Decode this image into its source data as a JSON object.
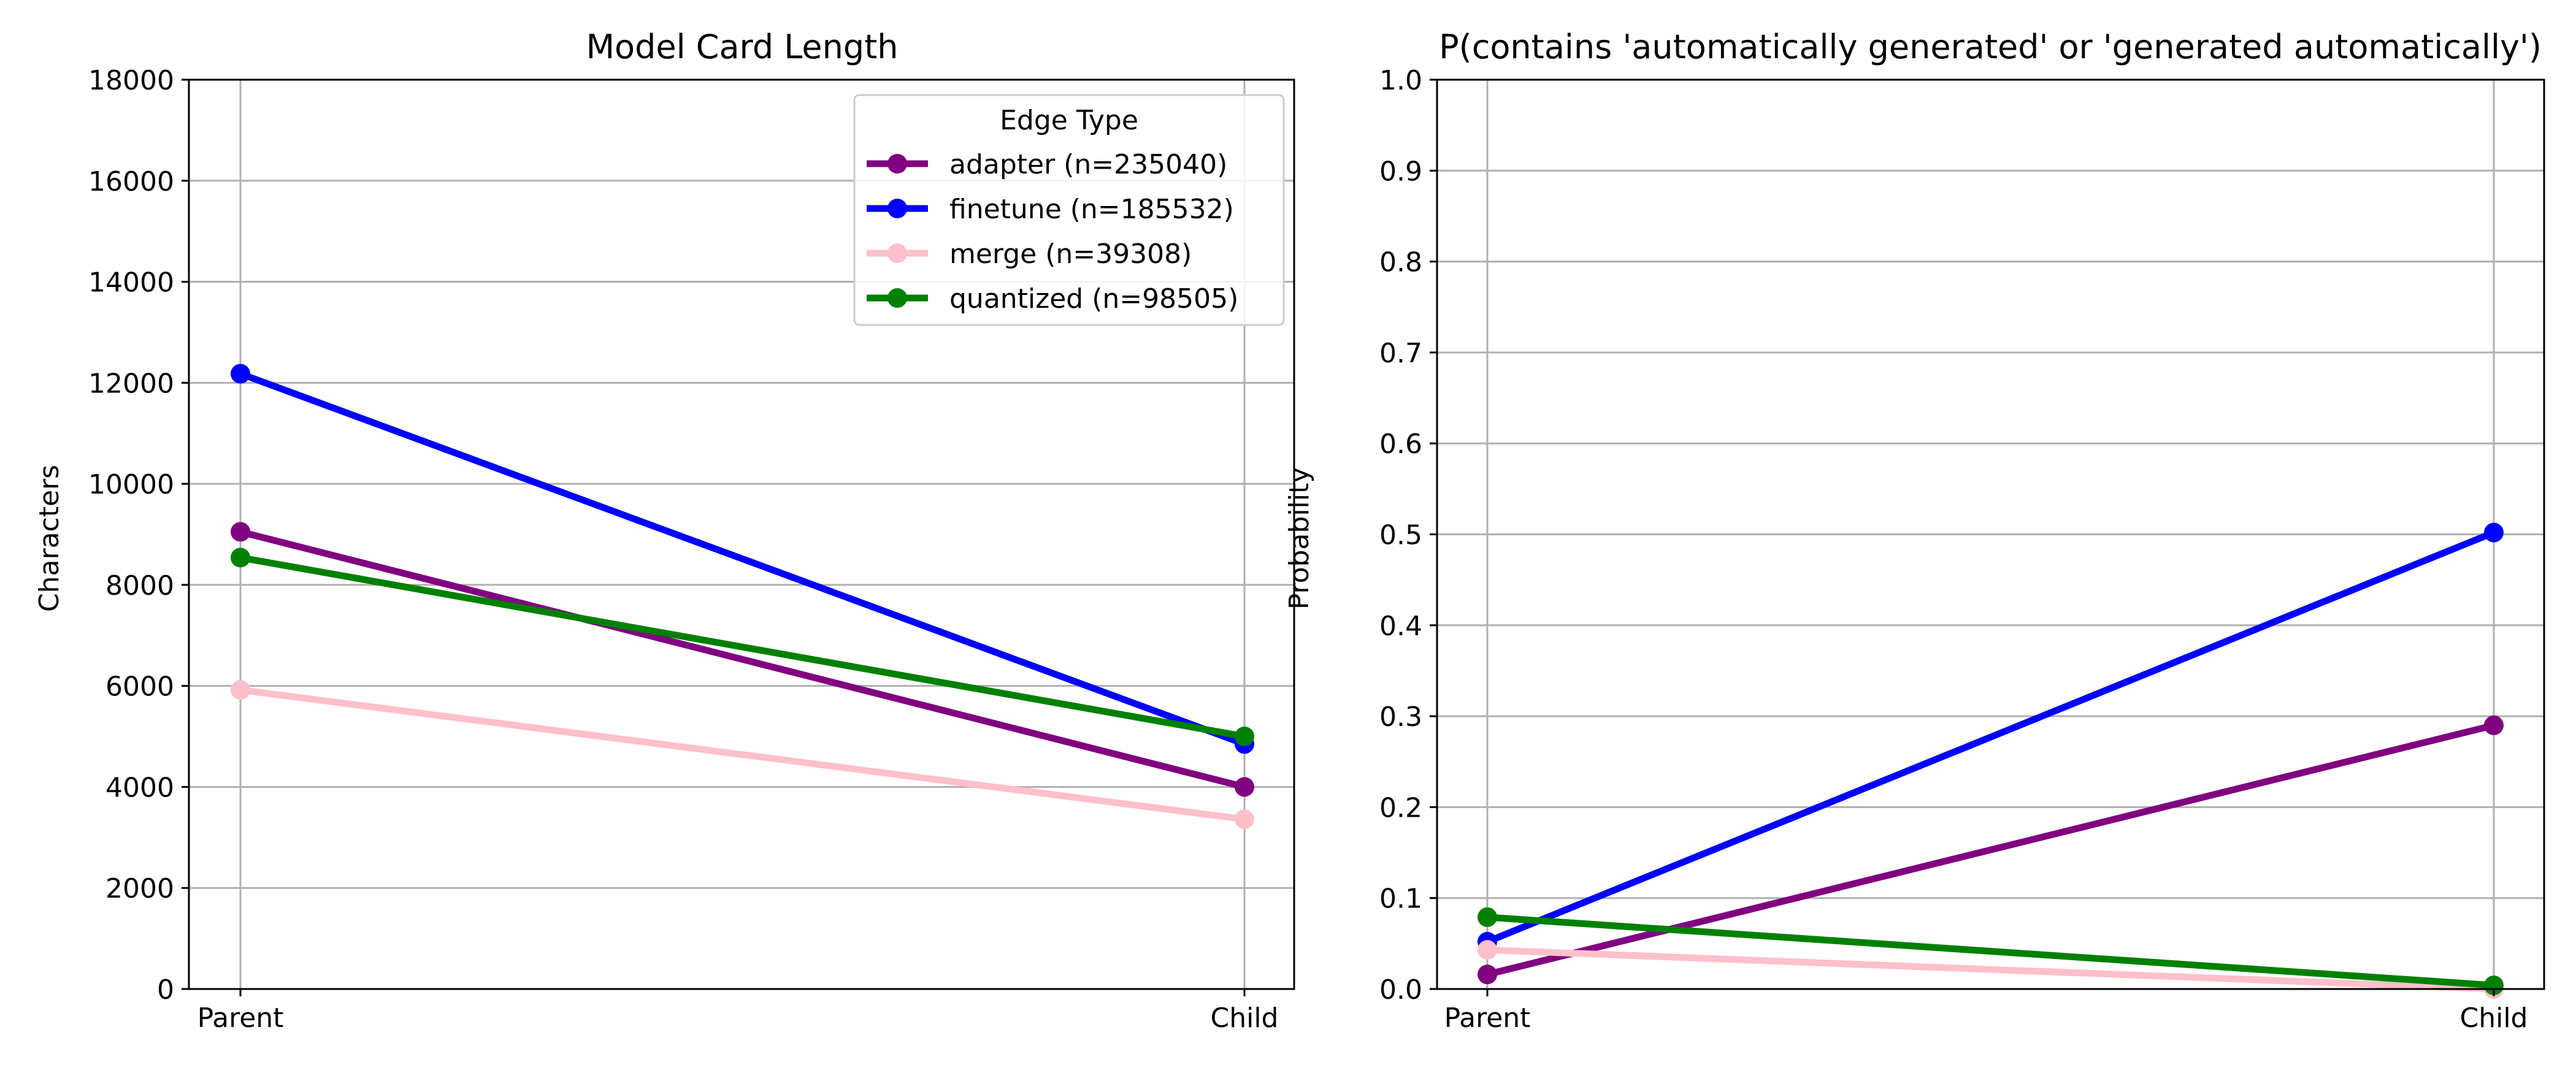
{
  "chart_data": [
    {
      "type": "line",
      "title": "Model Card Length",
      "xlabel": "",
      "ylabel": "Characters",
      "categories": [
        "Parent",
        "Child"
      ],
      "ylim": [
        0,
        18000
      ],
      "yticks": [
        0,
        2000,
        4000,
        6000,
        8000,
        10000,
        12000,
        14000,
        16000,
        18000
      ],
      "ytick_labels": [
        "0",
        "2000",
        "4000",
        "6000",
        "8000",
        "10000",
        "12000",
        "14000",
        "16000",
        "18000"
      ],
      "grid": true,
      "legend": {
        "title": "Edge Type",
        "placement": "top-right",
        "entries": [
          "adapter (n=235040)",
          "finetune (n=185532)",
          "merge (n=39308)",
          "quantized (n=98505)"
        ]
      },
      "series": [
        {
          "key": "adapter",
          "color": "#800080",
          "values": [
            9050,
            4000
          ]
        },
        {
          "key": "finetune",
          "color": "#0000ff",
          "values": [
            12180,
            4850
          ]
        },
        {
          "key": "merge",
          "color": "#ffc0cb",
          "values": [
            5920,
            3360
          ]
        },
        {
          "key": "quantized",
          "color": "#008000",
          "values": [
            8540,
            5000
          ]
        }
      ]
    },
    {
      "type": "line",
      "title": "P(contains 'automatically generated' or 'generated automatically')",
      "xlabel": "",
      "ylabel": "Probability",
      "categories": [
        "Parent",
        "Child"
      ],
      "ylim": [
        0,
        1.0
      ],
      "yticks": [
        0,
        0.1,
        0.2,
        0.3,
        0.4,
        0.5,
        0.6,
        0.7,
        0.8,
        0.9,
        1.0
      ],
      "ytick_labels": [
        "0.0",
        "0.1",
        "0.2",
        "0.3",
        "0.4",
        "0.5",
        "0.6",
        "0.7",
        "0.8",
        "0.9",
        "1.0"
      ],
      "grid": true,
      "series": [
        {
          "key": "adapter",
          "color": "#800080",
          "values": [
            0.016,
            0.29
          ]
        },
        {
          "key": "finetune",
          "color": "#0000ff",
          "values": [
            0.052,
            0.502
          ]
        },
        {
          "key": "merge",
          "color": "#ffc0cb",
          "values": [
            0.043,
            0.0
          ]
        },
        {
          "key": "quantized",
          "color": "#008000",
          "values": [
            0.079,
            0.004
          ]
        }
      ]
    }
  ]
}
